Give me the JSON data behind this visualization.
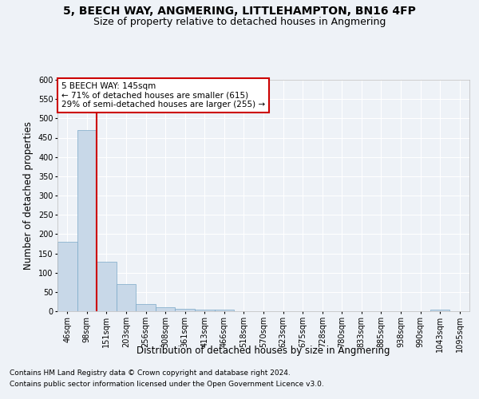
{
  "title": "5, BEECH WAY, ANGMERING, LITTLEHAMPTON, BN16 4FP",
  "subtitle": "Size of property relative to detached houses in Angmering",
  "xlabel": "Distribution of detached houses by size in Angmering",
  "ylabel": "Number of detached properties",
  "bar_color": "#c8d8e8",
  "bar_edge_color": "#7aa8c8",
  "background_color": "#eef2f7",
  "grid_color": "#ffffff",
  "categories": [
    "46sqm",
    "98sqm",
    "151sqm",
    "203sqm",
    "256sqm",
    "308sqm",
    "361sqm",
    "413sqm",
    "466sqm",
    "518sqm",
    "570sqm",
    "623sqm",
    "675sqm",
    "728sqm",
    "780sqm",
    "833sqm",
    "885sqm",
    "938sqm",
    "990sqm",
    "1043sqm",
    "1095sqm"
  ],
  "values": [
    180,
    470,
    128,
    70,
    18,
    10,
    7,
    5,
    5,
    0,
    0,
    0,
    0,
    0,
    0,
    0,
    0,
    0,
    0,
    5,
    0
  ],
  "ylim": [
    0,
    600
  ],
  "yticks": [
    0,
    50,
    100,
    150,
    200,
    250,
    300,
    350,
    400,
    450,
    500,
    550,
    600
  ],
  "vline_x": 1.5,
  "vline_color": "#cc0000",
  "annotation_title": "5 BEECH WAY: 145sqm",
  "annotation_line1": "← 71% of detached houses are smaller (615)",
  "annotation_line2": "29% of semi-detached houses are larger (255) →",
  "annotation_box_color": "#ffffff",
  "annotation_box_edge": "#cc0000",
  "footer_line1": "Contains HM Land Registry data © Crown copyright and database right 2024.",
  "footer_line2": "Contains public sector information licensed under the Open Government Licence v3.0.",
  "title_fontsize": 10,
  "subtitle_fontsize": 9,
  "tick_fontsize": 7,
  "ylabel_fontsize": 8.5,
  "xlabel_fontsize": 8.5,
  "footer_fontsize": 6.5
}
